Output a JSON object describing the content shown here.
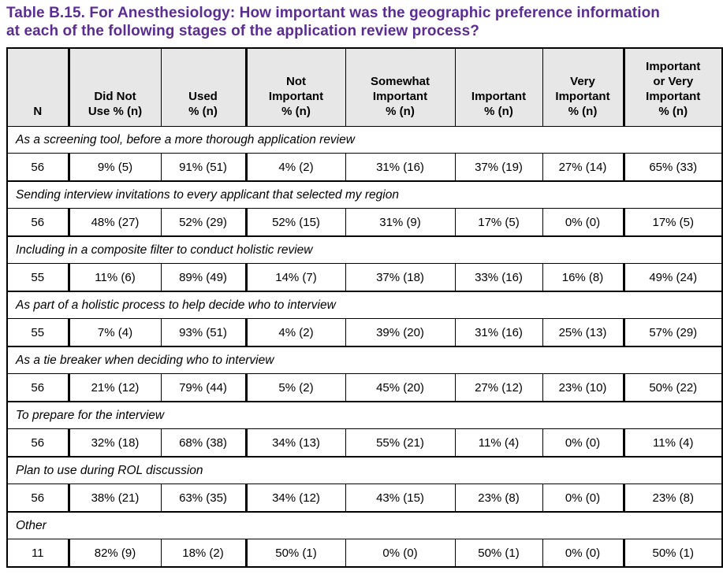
{
  "title": "Table B.15. For Anesthesiology: How important was the geographic preference information\nat each of the following stages of the application review process?",
  "colors": {
    "title_text": "#5C2D91",
    "header_background": "#E7E7E7",
    "border": "#000000"
  },
  "table": {
    "columns": [
      {
        "label": "N"
      },
      {
        "label": "Did Not\nUse % (n)"
      },
      {
        "label": "Used\n% (n)"
      },
      {
        "label": "Not\nImportant\n% (n)"
      },
      {
        "label": "Somewhat\nImportant\n% (n)"
      },
      {
        "label": "Important\n% (n)"
      },
      {
        "label": "Very\nImportant\n% (n)"
      },
      {
        "label": "Important\nor Very\nImportant\n% (n)"
      }
    ],
    "sections": [
      {
        "label": "As a screening tool, before a more thorough application review",
        "n": "56",
        "values": [
          "9% (5)",
          "91% (51)",
          "4% (2)",
          "31% (16)",
          "37% (19)",
          "27% (14)",
          "65% (33)"
        ]
      },
      {
        "label": "Sending interview invitations to every applicant that selected my region",
        "n": "56",
        "values": [
          "48% (27)",
          "52% (29)",
          "52% (15)",
          "31% (9)",
          "17% (5)",
          "0% (0)",
          "17% (5)"
        ]
      },
      {
        "label": "Including in a composite filter to conduct holistic review",
        "n": "55",
        "values": [
          "11% (6)",
          "89% (49)",
          "14% (7)",
          "37% (18)",
          "33% (16)",
          "16% (8)",
          "49% (24)"
        ]
      },
      {
        "label": "As part of a holistic process to help decide who to interview",
        "n": "55",
        "values": [
          "7% (4)",
          "93% (51)",
          "4% (2)",
          "39% (20)",
          "31% (16)",
          "25% (13)",
          "57% (29)"
        ]
      },
      {
        "label": "As a tie breaker when deciding who to interview",
        "n": "56",
        "values": [
          "21% (12)",
          "79% (44)",
          "5% (2)",
          "45% (20)",
          "27% (12)",
          "23% (10)",
          "50% (22)"
        ]
      },
      {
        "label": "To prepare for the interview",
        "n": "56",
        "values": [
          "32% (18)",
          "68% (38)",
          "34% (13)",
          "55% (21)",
          "11% (4)",
          "0% (0)",
          "11% (4)"
        ]
      },
      {
        "label": "Plan to use during ROL discussion",
        "n": "56",
        "values": [
          "38% (21)",
          "63% (35)",
          "34% (12)",
          "43% (15)",
          "23% (8)",
          "0% (0)",
          "23% (8)"
        ]
      },
      {
        "label": "Other",
        "n": "11",
        "values": [
          "82% (9)",
          "18% (2)",
          "50% (1)",
          "0% (0)",
          "50% (1)",
          "0% (0)",
          "50% (1)"
        ]
      }
    ]
  }
}
